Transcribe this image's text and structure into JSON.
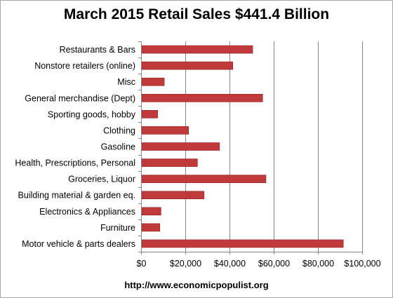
{
  "chart_data": {
    "type": "bar",
    "orientation": "horizontal",
    "title": "March 2015 Retail Sales $441.4 Billion",
    "footer": "http://www.economicpopulist.org",
    "categories": [
      "Restaurants & Bars",
      "Nonstore retailers (online)",
      "Misc",
      "General merchandise (Dept)",
      "Sporting goods, hobby",
      "Clothing",
      "Gasoline",
      "Health, Prescriptions, Personal",
      "Groceries, Liquor",
      "Building material & garden eq.",
      "Electronics & Appliances",
      "Furniture",
      "Motor vehicle & parts dealers"
    ],
    "values": [
      50500,
      41500,
      10500,
      55000,
      7500,
      21500,
      35500,
      25500,
      56500,
      28500,
      9000,
      8500,
      91500
    ],
    "xlim": [
      0,
      100000
    ],
    "xticks": [
      0,
      20000,
      40000,
      60000,
      80000,
      100000
    ],
    "xtick_labels": [
      "$0",
      "$20,000",
      "$40,000",
      "$60,000",
      "$80,000",
      "$100,000"
    ],
    "grid": "vertical",
    "bar_color": "#c0393b",
    "legend": "none"
  }
}
